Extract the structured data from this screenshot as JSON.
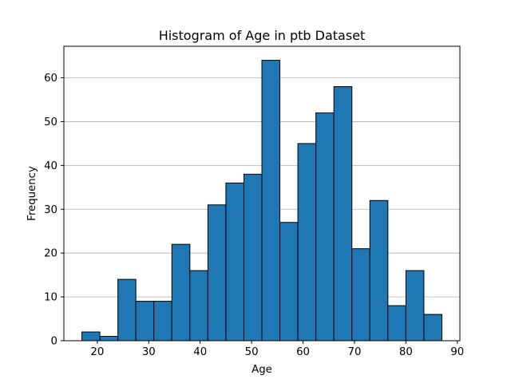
{
  "chart_data": {
    "type": "bar",
    "title": "Histogram of Age in ptb Dataset",
    "xlabel": "Age",
    "ylabel": "Frequency",
    "xlim": [
      13.5,
      90.5
    ],
    "ylim": [
      0,
      67.2
    ],
    "xticks": [
      20,
      30,
      40,
      50,
      60,
      70,
      80,
      90
    ],
    "yticks": [
      0,
      10,
      20,
      30,
      40,
      50,
      60
    ],
    "grid": "y",
    "bar_color": "#1f77b4",
    "edge_color": "#000000",
    "bins": [
      {
        "start": 17.0,
        "end": 20.5,
        "count": 2
      },
      {
        "start": 20.5,
        "end": 24.0,
        "count": 1
      },
      {
        "start": 24.0,
        "end": 27.5,
        "count": 14
      },
      {
        "start": 27.5,
        "end": 31.0,
        "count": 9
      },
      {
        "start": 31.0,
        "end": 34.5,
        "count": 9
      },
      {
        "start": 34.5,
        "end": 38.0,
        "count": 22
      },
      {
        "start": 38.0,
        "end": 41.5,
        "count": 16
      },
      {
        "start": 41.5,
        "end": 45.0,
        "count": 31
      },
      {
        "start": 45.0,
        "end": 48.5,
        "count": 36
      },
      {
        "start": 48.5,
        "end": 52.0,
        "count": 38
      },
      {
        "start": 52.0,
        "end": 55.5,
        "count": 64
      },
      {
        "start": 55.5,
        "end": 59.0,
        "count": 27
      },
      {
        "start": 59.0,
        "end": 62.5,
        "count": 45
      },
      {
        "start": 62.5,
        "end": 66.0,
        "count": 52
      },
      {
        "start": 66.0,
        "end": 69.5,
        "count": 58
      },
      {
        "start": 69.5,
        "end": 73.0,
        "count": 21
      },
      {
        "start": 73.0,
        "end": 76.5,
        "count": 32
      },
      {
        "start": 76.5,
        "end": 80.0,
        "count": 8
      },
      {
        "start": 80.0,
        "end": 83.5,
        "count": 16
      },
      {
        "start": 83.5,
        "end": 87.0,
        "count": 6
      }
    ]
  }
}
